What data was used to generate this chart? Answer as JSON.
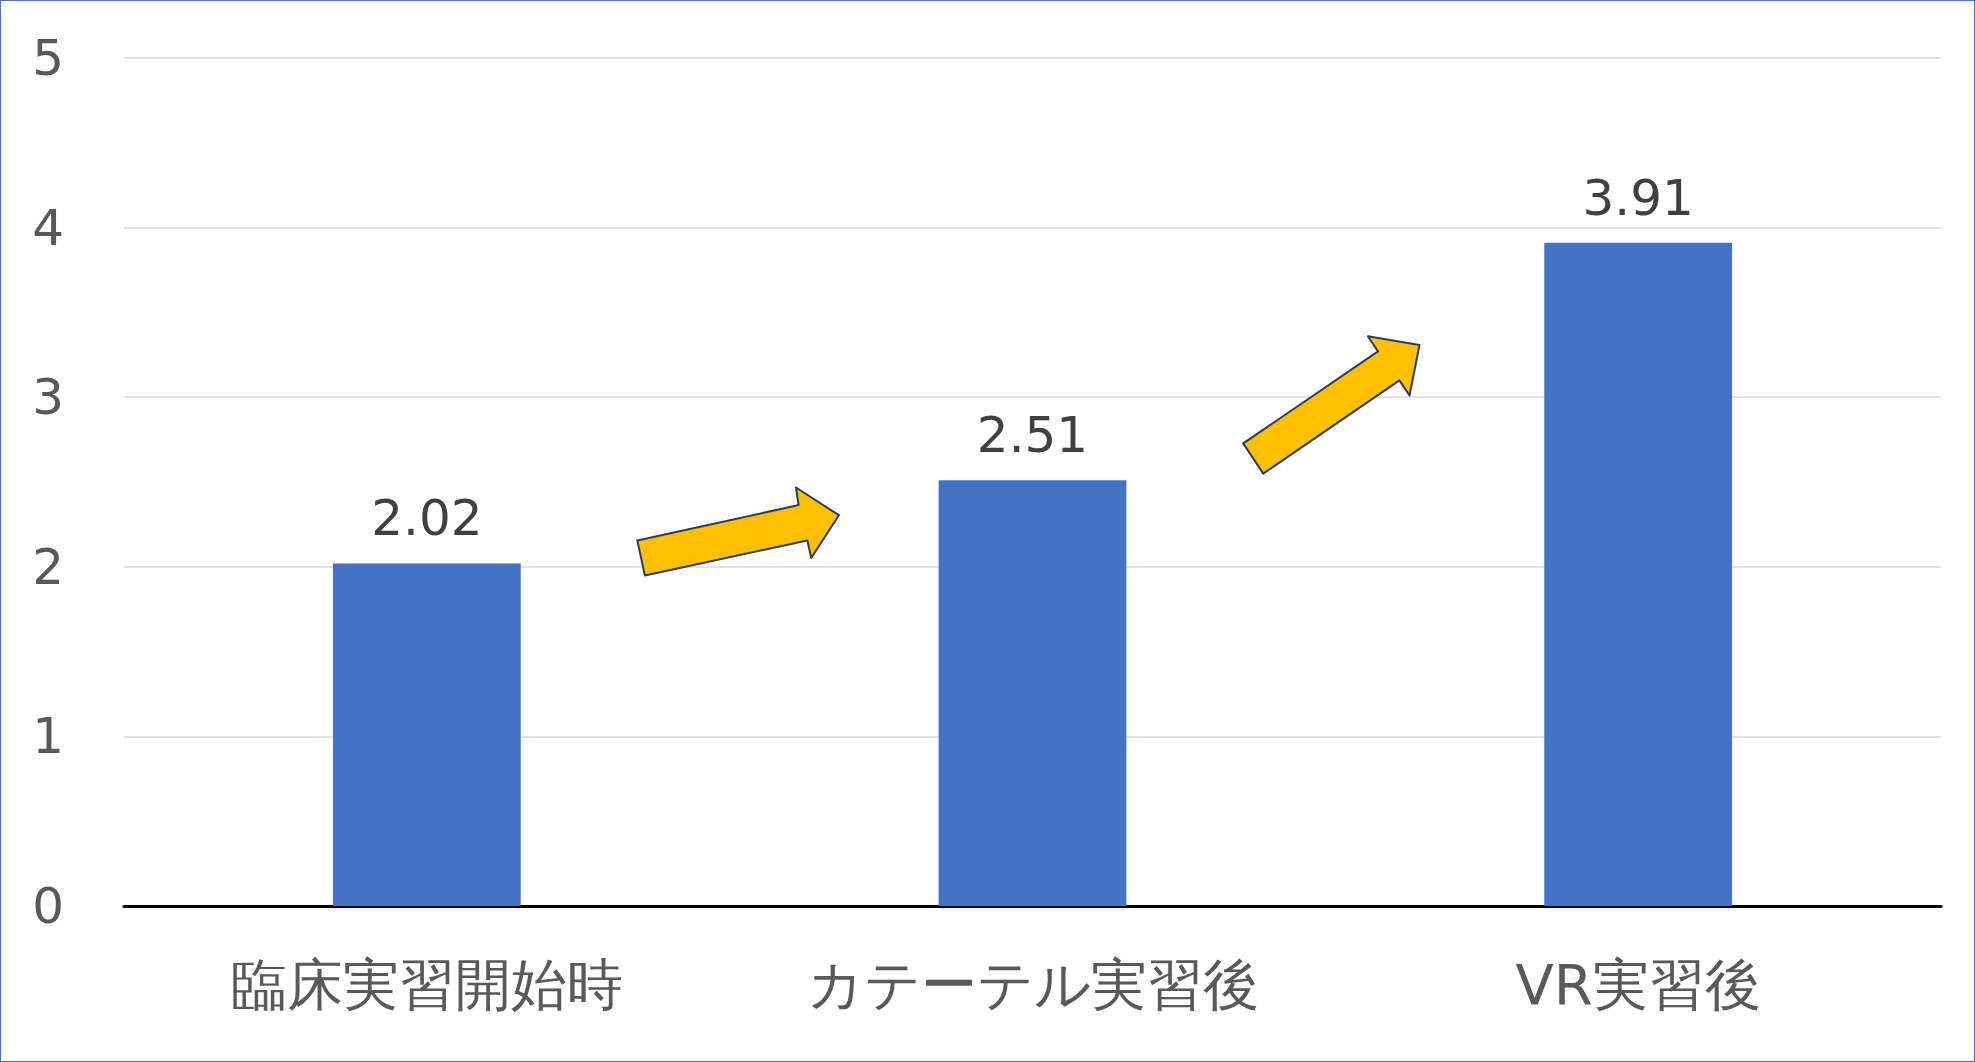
{
  "chart_data": {
    "type": "bar",
    "categories": [
      "臨床実習開始時",
      "カテーテル実習後",
      "VR実習後"
    ],
    "values": [
      2.02,
      2.51,
      3.91
    ],
    "color": "#4472c4",
    "ylim": [
      0,
      5
    ],
    "yticks": [
      0,
      1,
      2,
      3,
      4,
      5
    ],
    "grid": "y",
    "data_labels": true
  }
}
